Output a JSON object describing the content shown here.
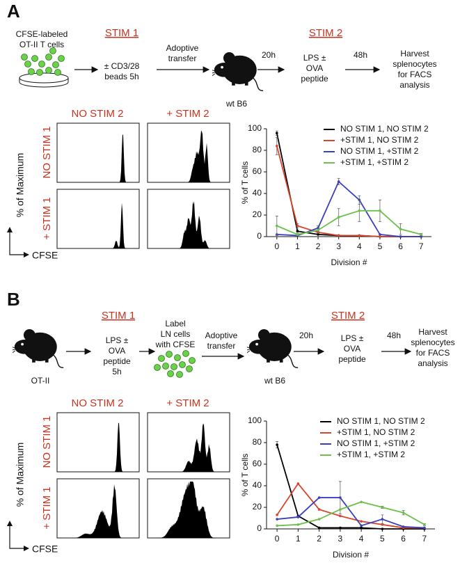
{
  "panel_a": {
    "label": "A",
    "cells_label": [
      "CFSE-labeled",
      "OT-II T cells"
    ],
    "stim1": "STIM 1",
    "stim1_text": [
      "± CD3/28",
      "beads 5h"
    ],
    "transfer": [
      "Adoptive",
      "transfer"
    ],
    "mouse": "wt B6",
    "time1": "20h",
    "stim2": "STIM 2",
    "stim2_text": [
      "LPS ±",
      "OVA",
      "peptide"
    ],
    "time2": "48h",
    "harvest": [
      "Harvest",
      "splenocytes",
      "for FACS",
      "analysis"
    ],
    "columns": [
      "NO STIM 2",
      "+ STIM 2"
    ],
    "rows": [
      "NO STIM 1",
      "+ STIM 1"
    ],
    "y_label": "% of Maximum",
    "x_label": "CFSE"
  },
  "panel_b": {
    "label": "B",
    "mouse1": "OT-II",
    "stim1": "STIM 1",
    "stim1_text": [
      "LPS ±",
      "OVA",
      "peptide",
      "5h"
    ],
    "label_text": [
      "Label",
      "LN cells",
      "with CFSE"
    ],
    "transfer": [
      "Adoptive",
      "transfer"
    ],
    "mouse2": "wt B6",
    "time1": "20h",
    "stim2": "STIM 2",
    "stim2_text": [
      "LPS ±",
      "OVA",
      "peptide"
    ],
    "time2": "48h",
    "harvest": [
      "Harvest",
      "splenocytes",
      "for FACS",
      "analysis"
    ],
    "columns": [
      "NO STIM 2",
      "+ STIM 2"
    ],
    "rows": [
      "NO STIM 1",
      "+ STIM 1"
    ],
    "y_label": "% of Maximum",
    "x_label": "CFSE"
  },
  "chart_data": [
    {
      "type": "line",
      "xlabel": "Division #",
      "ylabel": "% of T cells",
      "x": [
        0,
        1,
        2,
        3,
        4,
        5,
        6,
        7
      ],
      "xlim": [
        -0.5,
        7.5
      ],
      "xticks": [
        0,
        1,
        2,
        3,
        4,
        5,
        6,
        7
      ],
      "ylim": [
        0,
        100
      ],
      "yticks": [
        0,
        20,
        40,
        60,
        80,
        100
      ],
      "series": [
        {
          "name": "NO STIM 1, NO STIM 2",
          "color": "#000000",
          "values": [
            96,
            5,
            2,
            1,
            1,
            0,
            0,
            0
          ],
          "errors": [
            2,
            1,
            0,
            0,
            0,
            0,
            0,
            0
          ]
        },
        {
          "name": "+STIM 1, NO STIM 2",
          "color": "#d9442c",
          "values": [
            84,
            10,
            4,
            1,
            1,
            0,
            0,
            0
          ],
          "errors": [
            8,
            2,
            1,
            0,
            0,
            0,
            0,
            0
          ]
        },
        {
          "name": "NO STIM 1, +STIM 2",
          "color": "#3a3fc0",
          "values": [
            2,
            1,
            8,
            51,
            34,
            2,
            0,
            0
          ],
          "errors": [
            0,
            0,
            2,
            3,
            4,
            0,
            0,
            0
          ]
        },
        {
          "name": "+STIM 1, +STIM 2",
          "color": "#6cc04a",
          "values": [
            10,
            2,
            6,
            18,
            24,
            24,
            7,
            2
          ],
          "errors": [
            9,
            1,
            2,
            8,
            10,
            10,
            5,
            1
          ]
        }
      ]
    },
    {
      "type": "line",
      "xlabel": "Division #",
      "ylabel": "% of T cells",
      "x": [
        0,
        1,
        2,
        3,
        4,
        5,
        6,
        7
      ],
      "xlim": [
        -0.5,
        7.5
      ],
      "xticks": [
        0,
        1,
        2,
        3,
        4,
        5,
        6,
        7
      ],
      "ylim": [
        0,
        100
      ],
      "yticks": [
        0,
        20,
        40,
        60,
        80,
        100
      ],
      "series": [
        {
          "name": "NO STIM 1, NO STIM 2",
          "color": "#000000",
          "values": [
            78,
            12,
            1,
            1,
            1,
            0,
            0,
            0
          ],
          "errors": [
            3,
            0,
            0,
            0,
            0,
            0,
            0,
            0
          ]
        },
        {
          "name": "+STIM 1, NO STIM 2",
          "color": "#d9442c",
          "values": [
            13,
            42,
            18,
            12,
            7,
            4,
            1,
            1
          ],
          "errors": [
            0,
            0,
            0,
            0,
            0,
            0,
            0,
            0
          ]
        },
        {
          "name": "NO STIM 1, +STIM 2",
          "color": "#3a3fc0",
          "values": [
            9,
            11,
            29,
            29,
            3,
            9,
            2,
            1
          ],
          "errors": [
            0,
            0,
            0,
            15,
            0,
            4,
            0,
            0
          ]
        },
        {
          "name": "+STIM 1, +STIM 2",
          "color": "#6cc04a",
          "values": [
            3,
            4,
            9,
            18,
            25,
            20,
            15,
            4
          ],
          "errors": [
            0,
            0,
            0,
            0,
            0,
            1,
            2,
            1
          ]
        }
      ]
    }
  ]
}
